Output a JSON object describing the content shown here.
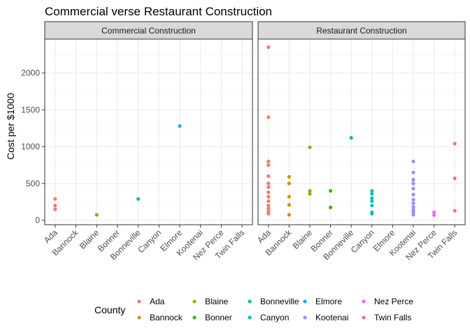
{
  "chart_data": {
    "type": "scatter",
    "title": "Commercial verse Restaurant Construction",
    "xlabel": "",
    "ylabel": "Cost per $1000",
    "ylim": [
      -60,
      2460
    ],
    "y_ticks": [
      0,
      500,
      1000,
      1500,
      2000
    ],
    "categories": [
      "Ada",
      "Bannock",
      "Blaine",
      "Bonner",
      "Bonneville",
      "Canyon",
      "Elmore",
      "Kootenai",
      "Nez Perce",
      "Twin Falls"
    ],
    "grid": true,
    "legend": {
      "title": "County",
      "placement": "bottom",
      "ncol": 5,
      "entries": [
        "Ada",
        "Bannock",
        "Blaine",
        "Bonner",
        "Bonneville",
        "Canyon",
        "Elmore",
        "Kootenai",
        "Nez Perce",
        "Twin Falls"
      ]
    },
    "colors": {
      "Ada": "#F8766D",
      "Bannock": "#D89000",
      "Blaine": "#A3A500",
      "Bonner": "#39B600",
      "Bonneville": "#00BF7D",
      "Canyon": "#00BFC4",
      "Elmore": "#00B0F6",
      "Kootenai": "#9590FF",
      "Nez Perce": "#E76BF3",
      "Twin Falls": "#FF62BC"
    },
    "panels": [
      {
        "title": "Commercial Construction",
        "points": [
          {
            "x": "Ada",
            "y": 290
          },
          {
            "x": "Ada",
            "y": 200
          },
          {
            "x": "Ada",
            "y": 150
          },
          {
            "x": "Blaine",
            "y": 75
          },
          {
            "x": "Bonneville",
            "y": 290
          },
          {
            "x": "Elmore",
            "y": 1280
          }
        ]
      },
      {
        "title": "Restaurant Construction",
        "points": [
          {
            "x": "Ada",
            "y": 2350
          },
          {
            "x": "Ada",
            "y": 1400
          },
          {
            "x": "Ada",
            "y": 800
          },
          {
            "x": "Ada",
            "y": 750
          },
          {
            "x": "Ada",
            "y": 600
          },
          {
            "x": "Ada",
            "y": 500
          },
          {
            "x": "Ada",
            "y": 450
          },
          {
            "x": "Ada",
            "y": 380
          },
          {
            "x": "Ada",
            "y": 320
          },
          {
            "x": "Ada",
            "y": 260
          },
          {
            "x": "Ada",
            "y": 200
          },
          {
            "x": "Ada",
            "y": 160
          },
          {
            "x": "Ada",
            "y": 120
          },
          {
            "x": "Ada",
            "y": 90
          },
          {
            "x": "Bannock",
            "y": 590
          },
          {
            "x": "Bannock",
            "y": 500
          },
          {
            "x": "Bannock",
            "y": 320
          },
          {
            "x": "Bannock",
            "y": 210
          },
          {
            "x": "Bannock",
            "y": 75
          },
          {
            "x": "Blaine",
            "y": 990
          },
          {
            "x": "Blaine",
            "y": 400
          },
          {
            "x": "Blaine",
            "y": 360
          },
          {
            "x": "Bonner",
            "y": 400
          },
          {
            "x": "Bonner",
            "y": 175
          },
          {
            "x": "Bonneville",
            "y": 1120
          },
          {
            "x": "Canyon",
            "y": 400
          },
          {
            "x": "Canyon",
            "y": 360
          },
          {
            "x": "Canyon",
            "y": 300
          },
          {
            "x": "Canyon",
            "y": 260
          },
          {
            "x": "Canyon",
            "y": 200
          },
          {
            "x": "Canyon",
            "y": 110
          },
          {
            "x": "Canyon",
            "y": 90
          },
          {
            "x": "Kootenai",
            "y": 800
          },
          {
            "x": "Kootenai",
            "y": 650
          },
          {
            "x": "Kootenai",
            "y": 550
          },
          {
            "x": "Kootenai",
            "y": 500
          },
          {
            "x": "Kootenai",
            "y": 430
          },
          {
            "x": "Kootenai",
            "y": 350
          },
          {
            "x": "Kootenai",
            "y": 280
          },
          {
            "x": "Kootenai",
            "y": 230
          },
          {
            "x": "Kootenai",
            "y": 180
          },
          {
            "x": "Kootenai",
            "y": 140
          },
          {
            "x": "Kootenai",
            "y": 110
          },
          {
            "x": "Kootenai",
            "y": 75
          },
          {
            "x": "Nez Perce",
            "y": 110
          },
          {
            "x": "Nez Perce",
            "y": 70
          },
          {
            "x": "Twin Falls",
            "y": 1040
          },
          {
            "x": "Twin Falls",
            "y": 570
          },
          {
            "x": "Twin Falls",
            "y": 130
          }
        ]
      }
    ]
  }
}
